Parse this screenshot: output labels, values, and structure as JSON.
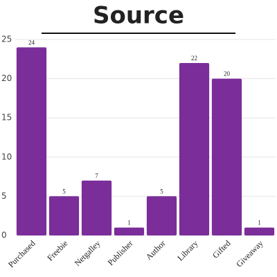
{
  "chart_data": {
    "type": "bar",
    "title": "Source",
    "categories": [
      "Purchased",
      "Freebie",
      "Netgalley",
      "Publisher",
      "Author",
      "Library",
      "Gifted",
      "Giveaway"
    ],
    "values": [
      24,
      5,
      7,
      1,
      5,
      22,
      20,
      1
    ],
    "color": "#7b2d9a",
    "ylim": [
      0,
      25
    ],
    "yticks": [
      0,
      5,
      10,
      15,
      20,
      25
    ],
    "grid": true
  }
}
